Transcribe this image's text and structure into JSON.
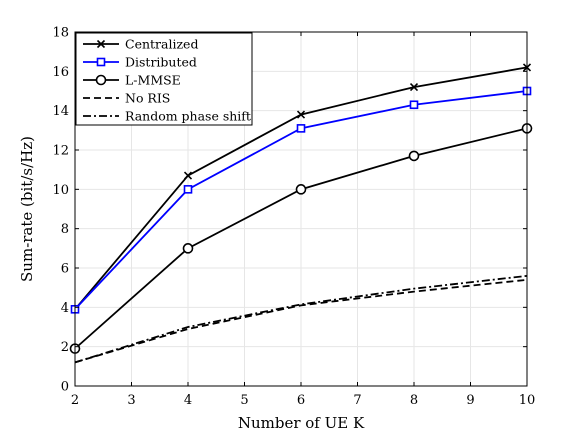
{
  "chart_data": {
    "type": "line",
    "xlabel": "Number of UE K",
    "ylabel": "Sum-rate (bit/s/Hz)",
    "xlim": [
      2,
      10
    ],
    "ylim": [
      0,
      18
    ],
    "xticks": [
      2,
      3,
      4,
      5,
      6,
      7,
      8,
      9,
      10
    ],
    "yticks": [
      0,
      2,
      4,
      6,
      8,
      10,
      12,
      14,
      16,
      18
    ],
    "grid": true,
    "legend_position": "top-left",
    "x": [
      2,
      4,
      6,
      8,
      10
    ],
    "series": [
      {
        "name": "Centralized",
        "color": "#000000",
        "dash": "solid",
        "marker": "x",
        "values": [
          3.9,
          10.7,
          13.8,
          15.2,
          16.2
        ]
      },
      {
        "name": "Distributed",
        "color": "#0000ff",
        "dash": "solid",
        "marker": "square",
        "values": [
          3.9,
          10.0,
          13.1,
          14.3,
          15.0
        ]
      },
      {
        "name": "L-MMSE",
        "color": "#000000",
        "dash": "solid",
        "marker": "circle",
        "values": [
          1.9,
          7.0,
          10.0,
          11.7,
          13.1
        ]
      },
      {
        "name": "No RIS",
        "color": "#000000",
        "dash": "dashed",
        "marker": "none",
        "values": [
          1.2,
          2.9,
          4.1,
          4.8,
          5.4
        ]
      },
      {
        "name": "Random phase shift",
        "color": "#000000",
        "dash": "dashdot",
        "marker": "none",
        "values": [
          1.2,
          3.0,
          4.15,
          4.95,
          5.6
        ]
      }
    ]
  }
}
